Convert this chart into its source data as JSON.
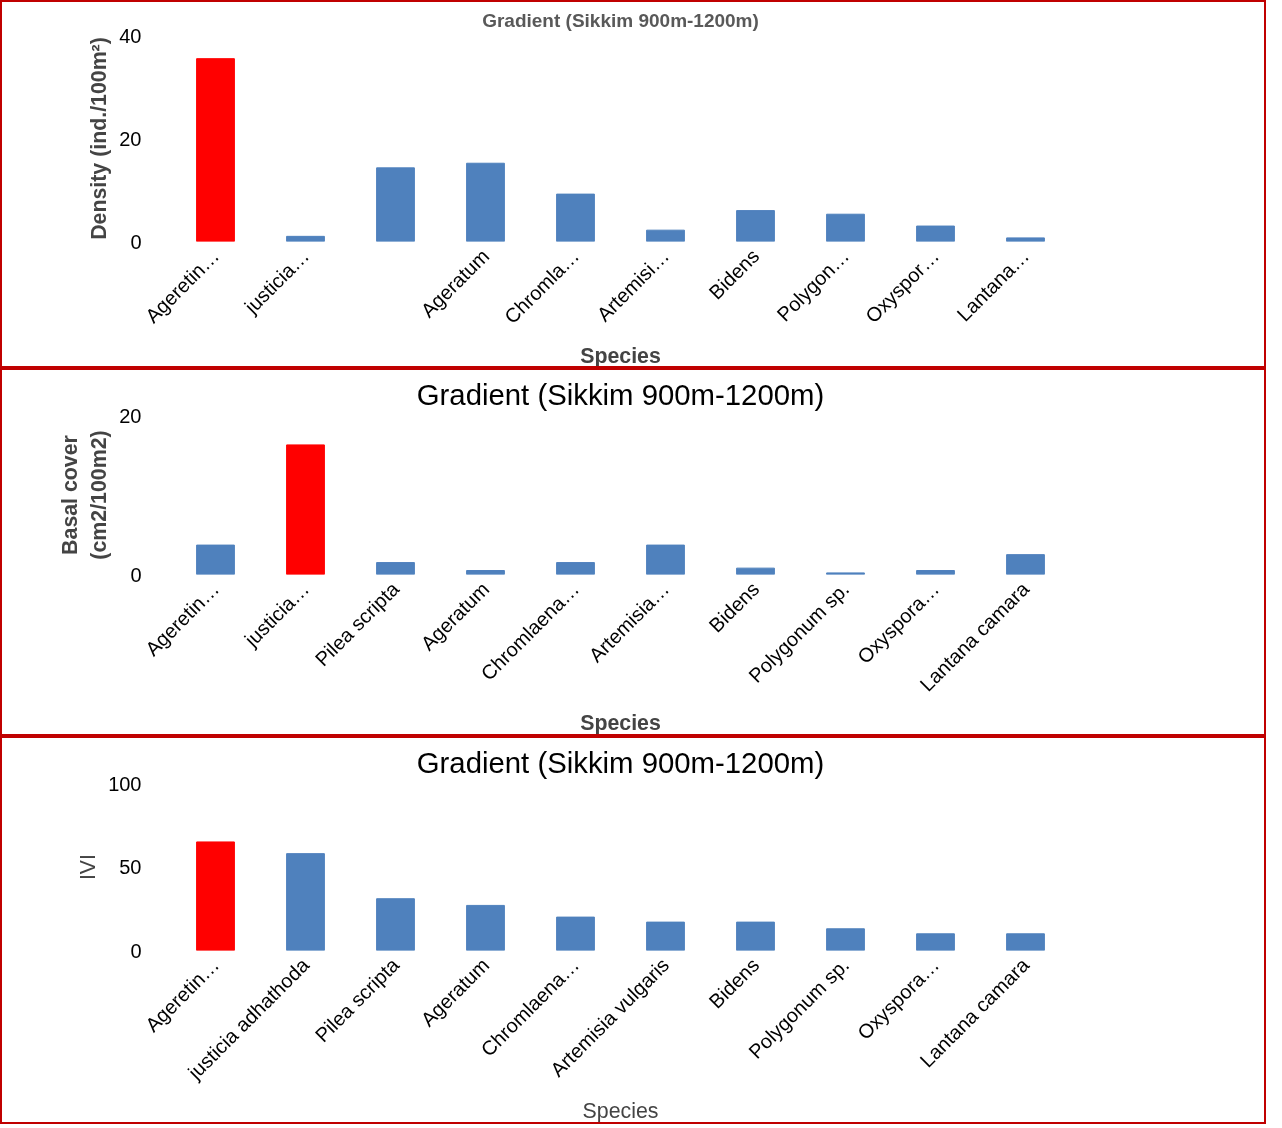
{
  "chart_data": [
    {
      "type": "bar",
      "title": "Gradient (Sikkim 900m-1200m)",
      "xlabel": "Species",
      "ylabel": "Density (ind./100m²)",
      "categories": [
        "Ageretin…",
        "justicia…",
        null,
        "Ageratum",
        "Chromla…",
        "Artemisi…",
        "Bidens",
        "Polygon…",
        "Oxyspor…",
        "Lantana…"
      ],
      "values": [
        35.5,
        1,
        14.3,
        15.2,
        9.2,
        2.2,
        6,
        5.3,
        3,
        0.7
      ],
      "colors": [
        "#ff0000",
        "#4f81bd",
        "#4f81bd",
        "#4f81bd",
        "#4f81bd",
        "#4f81bd",
        "#4f81bd",
        "#4f81bd",
        "#4f81bd",
        "#4f81bd"
      ],
      "ylim": [
        0,
        40
      ],
      "yticks": [
        0,
        20,
        40
      ],
      "grid": false
    },
    {
      "type": "bar",
      "title": "Gradient (Sikkim 900m-1200m)",
      "xlabel": "Species",
      "ylabel": "Basal cover\n(cm2/100m2)",
      "categories": [
        "Ageretin…",
        "justicia…",
        "Pilea scripta",
        "Ageratum",
        "Chromlaena…",
        "Artemisia…",
        "Bidens",
        "Polygonum sp.",
        "Oxyspora…",
        "Lantana camara"
      ],
      "values": [
        3.7,
        16.3,
        1.5,
        0.5,
        1.5,
        3.7,
        0.8,
        0.2,
        0.5,
        2.5
      ],
      "colors": [
        "#4f81bd",
        "#ff0000",
        "#4f81bd",
        "#4f81bd",
        "#4f81bd",
        "#4f81bd",
        "#4f81bd",
        "#4f81bd",
        "#4f81bd",
        "#4f81bd"
      ],
      "ylim": [
        0,
        20
      ],
      "yticks": [
        0,
        20
      ],
      "grid": false
    },
    {
      "type": "bar",
      "title": "Gradient (Sikkim 900m-1200m)",
      "xlabel": "Species",
      "ylabel": "IVI",
      "categories": [
        "Ageretin…",
        "justicia adhathoda",
        "Pilea scripta",
        "Ageratum",
        "Chromlaena…",
        "Artemisia vulgaris",
        "Bidens",
        "Polygonum sp.",
        "Oxyspora…",
        "Lantana camara"
      ],
      "values": [
        65,
        58,
        31,
        27,
        20,
        17,
        17,
        13,
        10,
        10
      ],
      "colors": [
        "#ff0000",
        "#4f81bd",
        "#4f81bd",
        "#4f81bd",
        "#4f81bd",
        "#4f81bd",
        "#4f81bd",
        "#4f81bd",
        "#4f81bd",
        "#4f81bd"
      ],
      "ylim": [
        0,
        100
      ],
      "yticks": [
        0,
        50,
        100
      ],
      "grid": false
    }
  ]
}
